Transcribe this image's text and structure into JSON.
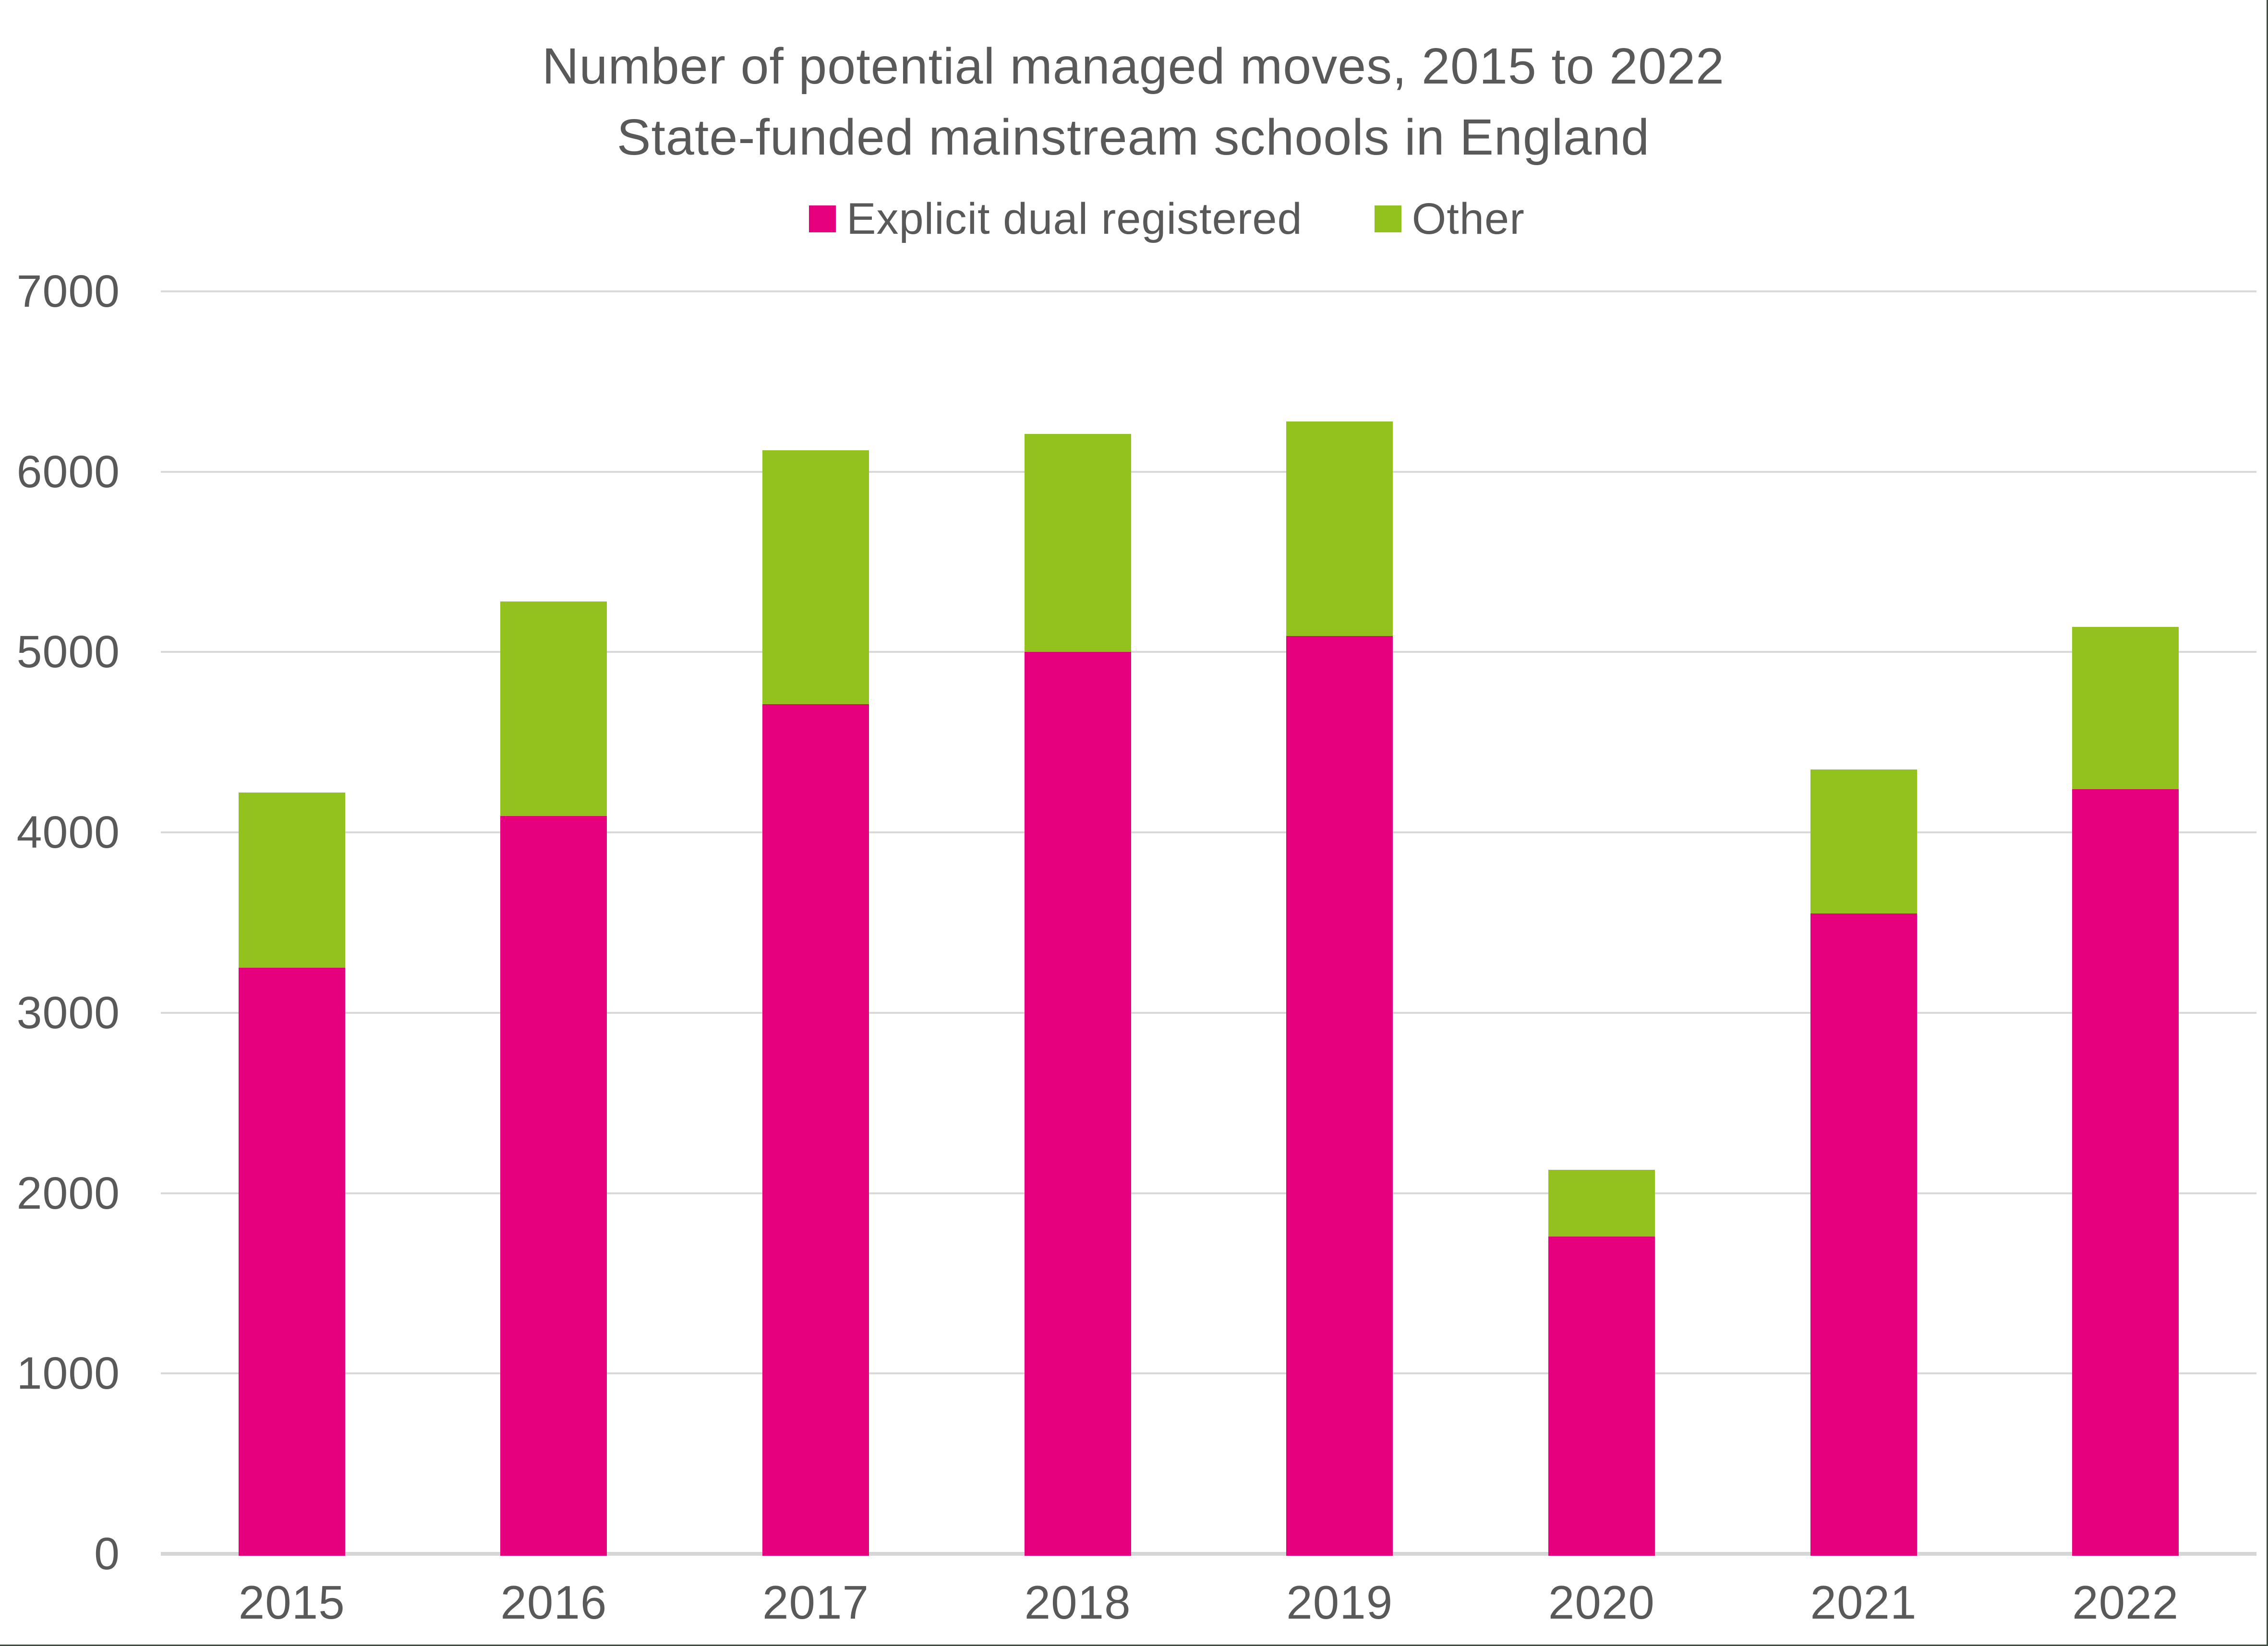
{
  "title": {
    "line1": "Number of potential managed moves, 2015 to 2022",
    "line2": "State-funded mainstream schools in England"
  },
  "legend": [
    {
      "label": "Explicit dual registered",
      "color": "#E6007E"
    },
    {
      "label": "Other",
      "color": "#93C11E"
    }
  ],
  "colors": {
    "text": "#595959",
    "gridline": "#D9D9D9",
    "axis_line": "#D6D6D6",
    "border": "#3E4F44",
    "background": "#FFFFFF",
    "series_explicit": "#E6007E",
    "series_other": "#93C11E"
  },
  "chart_data": {
    "type": "bar",
    "stacked": true,
    "title": "Number of potential managed moves, 2015 to 2022",
    "subtitle": "State-funded mainstream schools in England",
    "categories": [
      "2015",
      "2016",
      "2017",
      "2018",
      "2019",
      "2020",
      "2021",
      "2022"
    ],
    "series": [
      {
        "name": "Explicit dual registered",
        "color": "#E6007E",
        "values": [
          3250,
          4090,
          4710,
          5000,
          5090,
          1760,
          3550,
          4240
        ]
      },
      {
        "name": "Other",
        "color": "#93C11E",
        "values": [
          970,
          1190,
          1410,
          1210,
          1190,
          370,
          800,
          900
        ]
      }
    ],
    "stack_totals": [
      4220,
      5280,
      6120,
      6210,
      6280,
      2130,
      4350,
      5140
    ],
    "xlabel": "",
    "ylabel": "",
    "ylim": [
      0,
      7000
    ],
    "yticks": [
      0,
      1000,
      2000,
      3000,
      4000,
      5000,
      6000,
      7000
    ],
    "grid": true,
    "legend_position": "top-center"
  }
}
